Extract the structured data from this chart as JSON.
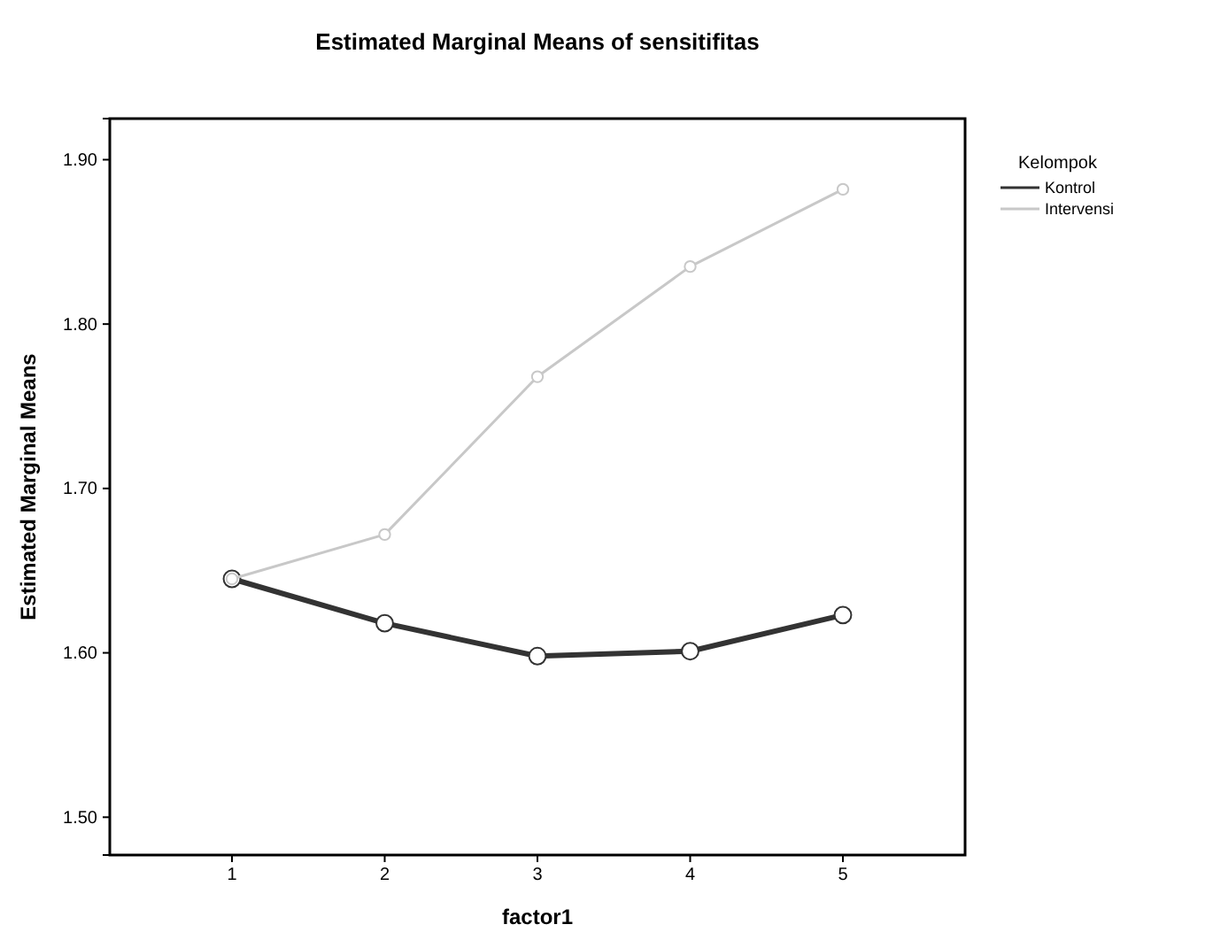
{
  "chart_data": {
    "type": "line",
    "title": "Estimated Marginal Means of sensitifitas",
    "xlabel": "factor1",
    "ylabel": "Estimated Marginal Means",
    "legend_title": "Kelompok",
    "categories": [
      "1",
      "2",
      "3",
      "4",
      "5"
    ],
    "series": [
      {
        "name": "Kontrol",
        "color": "#333333",
        "values": [
          1.645,
          1.618,
          1.598,
          1.601,
          1.623
        ]
      },
      {
        "name": "Intervensi",
        "color": "#c8c8c8",
        "values": [
          1.645,
          1.672,
          1.768,
          1.835,
          1.882
        ]
      }
    ],
    "ylim": [
      1.477,
      1.925
    ],
    "yticks": [
      {
        "value": 1.5,
        "label": "1.50"
      },
      {
        "value": 1.6,
        "label": "1.60"
      },
      {
        "value": 1.7,
        "label": "1.70"
      },
      {
        "value": 1.8,
        "label": "1.80"
      },
      {
        "value": 1.9,
        "label": "1.90"
      }
    ],
    "grid": false,
    "legend": "top right",
    "marker": "circle",
    "line_style": "solid"
  }
}
